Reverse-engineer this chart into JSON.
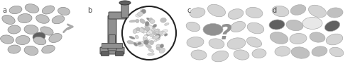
{
  "figsize": [
    5.0,
    0.91
  ],
  "dpi": 100,
  "bg_color": "#ffffff",
  "label_color": "#444444",
  "labels": [
    "a",
    "b",
    "c",
    "d"
  ],
  "light_gray": "#c0c0c0",
  "lighter_gray": "#d4d4d4",
  "medium_gray": "#909090",
  "dark_gray": "#606060",
  "very_light_gray": "#e8e8e8",
  "white": "#ffffff"
}
